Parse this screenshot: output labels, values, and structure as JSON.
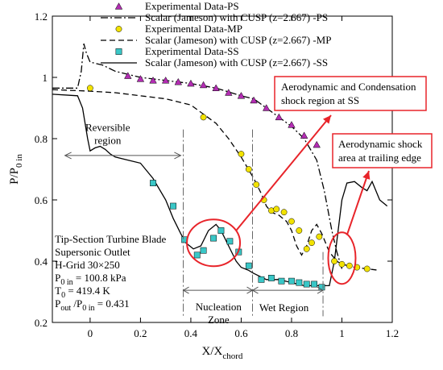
{
  "chart_data": {
    "type": "line",
    "title": "",
    "xlabel": "X/X",
    "xlabel_sub": "chord",
    "ylabel": "P/P",
    "ylabel_sub": "0 in",
    "xlim": [
      -0.15,
      1.2
    ],
    "ylim": [
      0.2,
      1.2
    ],
    "xticks": [
      0,
      0.2,
      0.4,
      0.6,
      0.8,
      1,
      1.2
    ],
    "xtick_labels": [
      "0",
      "0.2",
      "0.4",
      "0.6",
      "0.8",
      "1",
      "1.2"
    ],
    "yticks": [
      0.2,
      0.4,
      0.6,
      0.8,
      1,
      1.2
    ],
    "ytick_labels": [
      "0.2",
      "0.4",
      "0.6",
      "0.8",
      "1",
      "1.2"
    ],
    "grid": false,
    "legend_position": "top",
    "series": [
      {
        "name": "Experimental Data-PS",
        "kind": "marker",
        "marker": "triangle",
        "color": "#b32db3",
        "x": [
          0.15,
          0.2,
          0.25,
          0.3,
          0.35,
          0.4,
          0.45,
          0.5,
          0.55,
          0.6,
          0.65,
          0.7,
          0.75,
          0.8,
          0.85,
          0.9
        ],
        "y": [
          1.005,
          0.995,
          0.99,
          0.99,
          0.985,
          0.98,
          0.975,
          0.965,
          0.95,
          0.94,
          0.925,
          0.9,
          0.87,
          0.845,
          0.81,
          0.78
        ]
      },
      {
        "name": "Scalar (Jameson) with CUSP (z=2.667) -PS",
        "kind": "line",
        "dash": "dashdot",
        "color": "#000000",
        "x": [
          -0.15,
          -0.05,
          -0.035,
          -0.025,
          -0.015,
          -0.005,
          0.0,
          0.05,
          0.1,
          0.2,
          0.3,
          0.4,
          0.5,
          0.6,
          0.65,
          0.7,
          0.75,
          0.8,
          0.85,
          0.9,
          0.93,
          0.96,
          0.98,
          1.0
        ],
        "y": [
          0.965,
          0.965,
          1.02,
          1.11,
          1.08,
          1.06,
          1.05,
          1.04,
          1.02,
          1.0,
          0.99,
          0.98,
          0.965,
          0.94,
          0.93,
          0.9,
          0.87,
          0.84,
          0.8,
          0.73,
          0.63,
          0.5,
          0.43,
          0.375
        ]
      },
      {
        "name": "Experimental Data-MP",
        "kind": "marker",
        "marker": "circle",
        "color": "#f2e200",
        "x": [
          0.0,
          0.45,
          0.6,
          0.63,
          0.66,
          0.69,
          0.72,
          0.74,
          0.77,
          0.8,
          0.83,
          0.86,
          0.88,
          0.91,
          0.97,
          1.0,
          1.03,
          1.06,
          1.1
        ],
        "y": [
          0.965,
          0.87,
          0.75,
          0.7,
          0.65,
          0.6,
          0.565,
          0.57,
          0.56,
          0.53,
          0.5,
          0.44,
          0.46,
          0.48,
          0.4,
          0.39,
          0.385,
          0.38,
          0.375
        ]
      },
      {
        "name": "Scalar (Jameson) with CUSP (z=2.667) -MP",
        "kind": "line",
        "dash": "dash",
        "color": "#000000",
        "x": [
          -0.15,
          0.0,
          0.1,
          0.2,
          0.3,
          0.4,
          0.5,
          0.55,
          0.6,
          0.65,
          0.68,
          0.7,
          0.72,
          0.75,
          0.78,
          0.8,
          0.82,
          0.84,
          0.86,
          0.88,
          0.9,
          0.92,
          0.95,
          0.98,
          1.0,
          1.05,
          1.1,
          1.15
        ],
        "y": [
          0.96,
          0.955,
          0.95,
          0.94,
          0.93,
          0.91,
          0.85,
          0.8,
          0.74,
          0.67,
          0.62,
          0.58,
          0.56,
          0.55,
          0.53,
          0.5,
          0.45,
          0.42,
          0.45,
          0.5,
          0.52,
          0.49,
          0.43,
          0.4,
          0.39,
          0.38,
          0.375,
          0.37
        ]
      },
      {
        "name": "Experimental Data-SS",
        "kind": "marker",
        "marker": "square",
        "color": "#39c7c7",
        "x": [
          0.25,
          0.33,
          0.375,
          0.425,
          0.45,
          0.49,
          0.52,
          0.555,
          0.59,
          0.63,
          0.68,
          0.72,
          0.76,
          0.8,
          0.83,
          0.86,
          0.89,
          0.92
        ],
        "y": [
          0.655,
          0.58,
          0.47,
          0.42,
          0.435,
          0.475,
          0.5,
          0.465,
          0.43,
          0.385,
          0.34,
          0.345,
          0.335,
          0.335,
          0.33,
          0.325,
          0.325,
          0.315
        ]
      },
      {
        "name": "Scalar (Jameson) with CUSP (z=2.667) -SS",
        "kind": "line",
        "dash": "solid",
        "color": "#000000",
        "x": [
          -0.15,
          -0.05,
          -0.03,
          -0.01,
          0.0,
          0.02,
          0.04,
          0.06,
          0.08,
          0.1,
          0.15,
          0.2,
          0.25,
          0.3,
          0.33,
          0.36,
          0.38,
          0.41,
          0.44,
          0.47,
          0.5,
          0.52,
          0.55,
          0.58,
          0.6,
          0.63,
          0.65,
          0.7,
          0.75,
          0.8,
          0.85,
          0.9,
          0.95,
          0.97,
          1.0,
          1.02,
          1.05,
          1.08,
          1.1,
          1.12,
          1.15,
          1.18
        ],
        "y": [
          0.945,
          0.94,
          0.9,
          0.8,
          0.76,
          0.77,
          0.775,
          0.765,
          0.75,
          0.74,
          0.73,
          0.72,
          0.67,
          0.6,
          0.54,
          0.49,
          0.46,
          0.44,
          0.45,
          0.5,
          0.52,
          0.5,
          0.45,
          0.4,
          0.38,
          0.37,
          0.36,
          0.34,
          0.34,
          0.33,
          0.32,
          0.32,
          0.32,
          0.4,
          0.6,
          0.655,
          0.66,
          0.64,
          0.63,
          0.66,
          0.6,
          0.58
        ]
      }
    ],
    "annotations": {
      "reversible": [
        "Reversible",
        "region"
      ],
      "nucleation": [
        "Nucleation",
        "Zone"
      ],
      "wet": "Wet Region",
      "info": [
        "Tip-Section Turbine Blade",
        "Supersonic Outlet",
        "H-Grid 30×250",
        "P",
        "0 in",
        " = 100.8 kPa",
        "T",
        "0",
        " = 419.4 K",
        "P",
        "out",
        " /P",
        "0 in",
        " = 0.431"
      ],
      "box1": [
        "Aerodynamic and Condensation",
        "shock region at SS"
      ],
      "box2": [
        "Aerodynamic shock",
        "area at trailing edge"
      ]
    },
    "accent": "#e8242a"
  }
}
